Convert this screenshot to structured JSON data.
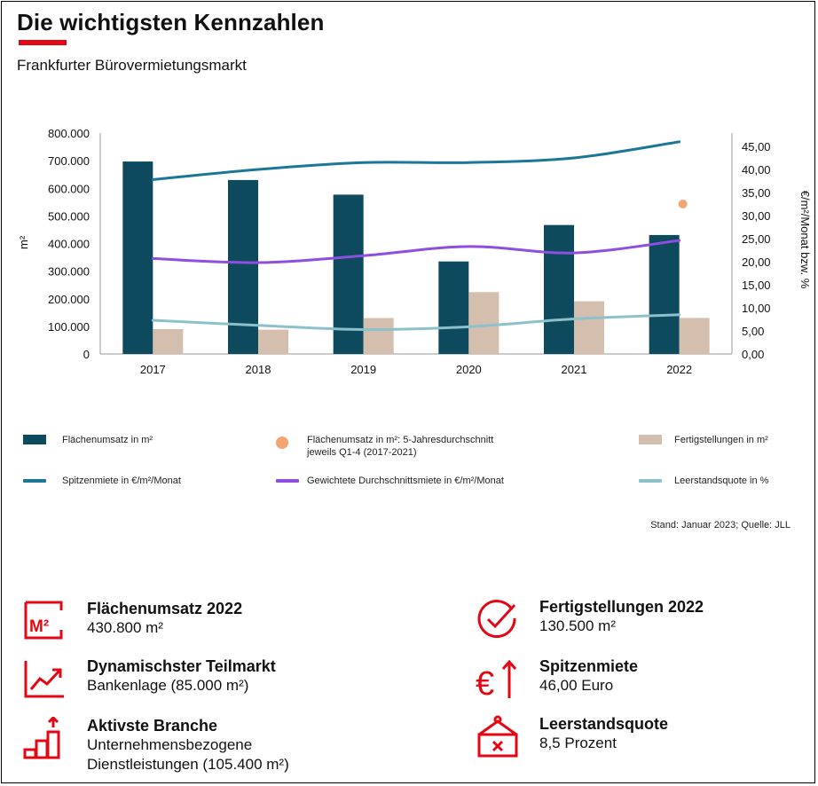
{
  "title": "Die wichtigsten Kennzahlen",
  "subtitle": "Frankfurter Bürovermietungsmarkt",
  "colors": {
    "accent": "#e30613",
    "flaechenumsatz": "#0d4a5e",
    "fertigstellungen": "#d4bfae",
    "spitzenmiete": "#1a7896",
    "durchschnittsmiete": "#8e4ee0",
    "leerstand": "#8cc1cc",
    "fuenfjahr": "#f4a672"
  },
  "chart_data": {
    "type": "bar",
    "categories": [
      "2017",
      "2018",
      "2019",
      "2020",
      "2021",
      "2022"
    ],
    "y_left": {
      "label": "m²",
      "range": [
        0,
        800000
      ],
      "ticks": [
        "0",
        "100.000",
        "200.000",
        "300.000",
        "400.000",
        "500.000",
        "600.000",
        "700.000",
        "800.000"
      ]
    },
    "y_right": {
      "label": "€/m²/Monat bzw. %",
      "range": [
        0,
        45
      ],
      "ticks": [
        "0,00",
        "5,00",
        "10,00",
        "15,00",
        "20,00",
        "25,00",
        "30,00",
        "35,00",
        "40,00",
        "45,00"
      ]
    },
    "series": [
      {
        "name": "Flächenumsatz in m²",
        "type": "bar",
        "axis": "left",
        "values": [
          697000,
          630000,
          577000,
          335000,
          467000,
          430800
        ]
      },
      {
        "name": "Fertigstellungen in m²",
        "type": "bar",
        "axis": "left",
        "values": [
          90000,
          88000,
          130000,
          224000,
          191000,
          130500
        ]
      },
      {
        "name": "Spitzenmiete in €/m²/Monat",
        "type": "line",
        "axis": "right",
        "values": [
          37.8,
          40.0,
          41.5,
          41.5,
          42.5,
          46.0
        ]
      },
      {
        "name": "Gewichtete Durchschnittsmiete in €/m²/Monat",
        "type": "line",
        "axis": "right",
        "values": [
          20.7,
          19.8,
          21.3,
          23.3,
          21.9,
          24.6
        ]
      },
      {
        "name": "Leerstandsquote in %",
        "type": "line",
        "axis": "right",
        "values": [
          7.3,
          6.2,
          5.3,
          5.9,
          7.6,
          8.5
        ]
      },
      {
        "name": "Flächenumsatz in m²: 5-Jahresdurchschnitt jeweils Q1-4 (2017-2021)",
        "type": "scatter",
        "axis": "right",
        "x": "2022",
        "value": 32.5
      }
    ]
  },
  "legend": {
    "flaechenumsatz": "Flächenumsatz in m²",
    "fuenfjahr_line1": "Flächenumsatz in m²: 5-Jahresdurchschnitt",
    "fuenfjahr_line2": "jeweils Q1-4 (2017-2021)",
    "fertigstellungen": "Fertigstellungen in m²",
    "spitzenmiete": "Spitzenmiete in €/m²/Monat",
    "durchschnittsmiete": "Gewichtete Durchschnittsmiete in €/m²/Monat",
    "leerstand": "Leerstandsquote in %"
  },
  "source": "Stand: Januar 2023; Quelle: JLL",
  "kpis": {
    "flaechenumsatz": {
      "title": "Flächenumsatz 2022",
      "value": "430.800 m²",
      "icon": "m2-icon",
      "icon_text": "M²"
    },
    "teilmarkt": {
      "title": "Dynamischster Teilmarkt",
      "value": "Bankenlage (85.000 m²)",
      "icon": "trend-chart-icon"
    },
    "branche": {
      "title": "Aktivste Branche",
      "value": "Unternehmensbezogene",
      "value2": "Dienstleistungen (105.400 m²)",
      "icon": "stairs-arrow-icon"
    },
    "fertigstellungen": {
      "title": "Fertigstellungen 2022",
      "value": "130.500 m²",
      "icon": "checkmark-icon"
    },
    "spitzenmiete": {
      "title": "Spitzenmiete",
      "value": "46,00 Euro",
      "icon": "euro-up-icon",
      "icon_text": "€"
    },
    "leerstand": {
      "title": "Leerstandsquote",
      "value": "8,5 Prozent",
      "icon": "vacancy-sign-icon"
    }
  }
}
